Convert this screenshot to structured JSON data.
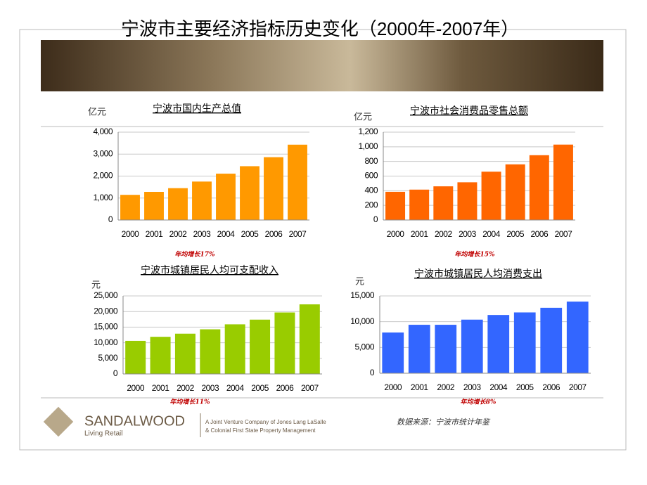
{
  "header": {
    "title": "宁波市主要经济指标历史变化（2000年-2007年）"
  },
  "chart_data": [
    {
      "type": "bar",
      "title": "宁波市国内生产总值",
      "y_label": "亿元",
      "note": "年均增长17%",
      "categories": [
        "2000",
        "2001",
        "2002",
        "2003",
        "2004",
        "2005",
        "2006",
        "2007"
      ],
      "values": [
        1145,
        1280,
        1450,
        1750,
        2110,
        2450,
        2860,
        3430
      ],
      "color": "#ff9900",
      "ylim": [
        0,
        4000
      ],
      "yticks": [
        0,
        {
          "value": 1000,
          "label": "1,000"
        },
        {
          "value": 2000,
          "label": "2,000"
        },
        {
          "value": 3000,
          "label": "3,000"
        },
        {
          "value": 4000,
          "label": "4,000"
        }
      ],
      "grid": true
    },
    {
      "type": "bar",
      "title": "宁波市社会消费品零售总额",
      "y_label": "亿元",
      "note": "年均增长15%",
      "categories": [
        "2000",
        "2001",
        "2002",
        "2003",
        "2004",
        "2005",
        "2006",
        "2007"
      ],
      "values": [
        385,
        415,
        460,
        515,
        660,
        760,
        885,
        1030
      ],
      "color": "#ff6600",
      "ylim": [
        0,
        1200
      ],
      "yticks": [
        0,
        200,
        400,
        600,
        800,
        {
          "value": 1000,
          "label": "1,000"
        },
        {
          "value": 1200,
          "label": "1,200"
        }
      ],
      "grid": true
    },
    {
      "type": "bar",
      "title": "宁波市城镇居民人均可支配收入",
      "y_label": "元",
      "note": "年均增长11%",
      "categories": [
        "2000",
        "2001",
        "2002",
        "2003",
        "2004",
        "2005",
        "2006",
        "2007"
      ],
      "values": [
        10600,
        11900,
        12900,
        14300,
        15900,
        17400,
        19700,
        22300
      ],
      "color": "#99cc00",
      "ylim": [
        0,
        25000
      ],
      "yticks": [
        0,
        {
          "value": 5000,
          "label": "5,000"
        },
        {
          "value": 10000,
          "label": "10,000"
        },
        {
          "value": 15000,
          "label": "15,000"
        },
        {
          "value": 20000,
          "label": "20,000"
        },
        {
          "value": 25000,
          "label": "25,000"
        }
      ],
      "grid": true
    },
    {
      "type": "bar",
      "title": "宁波市城镇居民人均消费支出",
      "y_label": "元",
      "note": "年均增长8%",
      "categories": [
        "2000",
        "2001",
        "2002",
        "2003",
        "2004",
        "2005",
        "2006",
        "2007"
      ],
      "values": [
        7900,
        9400,
        9400,
        10400,
        11300,
        11800,
        12700,
        13900
      ],
      "color": "#3366ff",
      "ylim": [
        0,
        15000
      ],
      "yticks": [
        0,
        {
          "value": 5000,
          "label": "5,000"
        },
        {
          "value": 10000,
          "label": "10,000"
        },
        {
          "value": 15000,
          "label": "15,000"
        }
      ],
      "grid": true
    }
  ],
  "footer": {
    "source": "数据来源：宁波市统计年鉴",
    "brand": "SANDALWOOD",
    "tagline": "Living Retail",
    "line1": "A Joint Venture Company of Jones Lang LaSalle",
    "line2": "& Colonial First State Property Management"
  }
}
